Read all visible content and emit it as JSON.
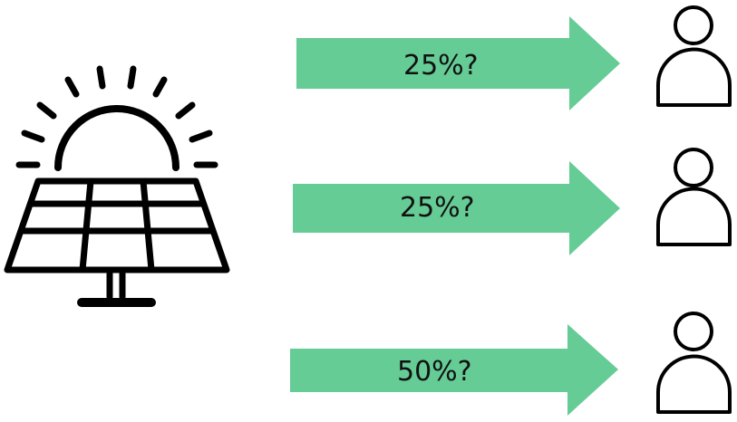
{
  "colors": {
    "arrow": "#66CC96",
    "ink": "#000000",
    "background": "#FFFFFF"
  },
  "source": {
    "icon": "solar-panel-icon"
  },
  "flows": [
    {
      "label": "25%?",
      "recipient_icon": "person-icon"
    },
    {
      "label": "25%?",
      "recipient_icon": "person-icon"
    },
    {
      "label": "50%?",
      "recipient_icon": "person-icon"
    }
  ]
}
